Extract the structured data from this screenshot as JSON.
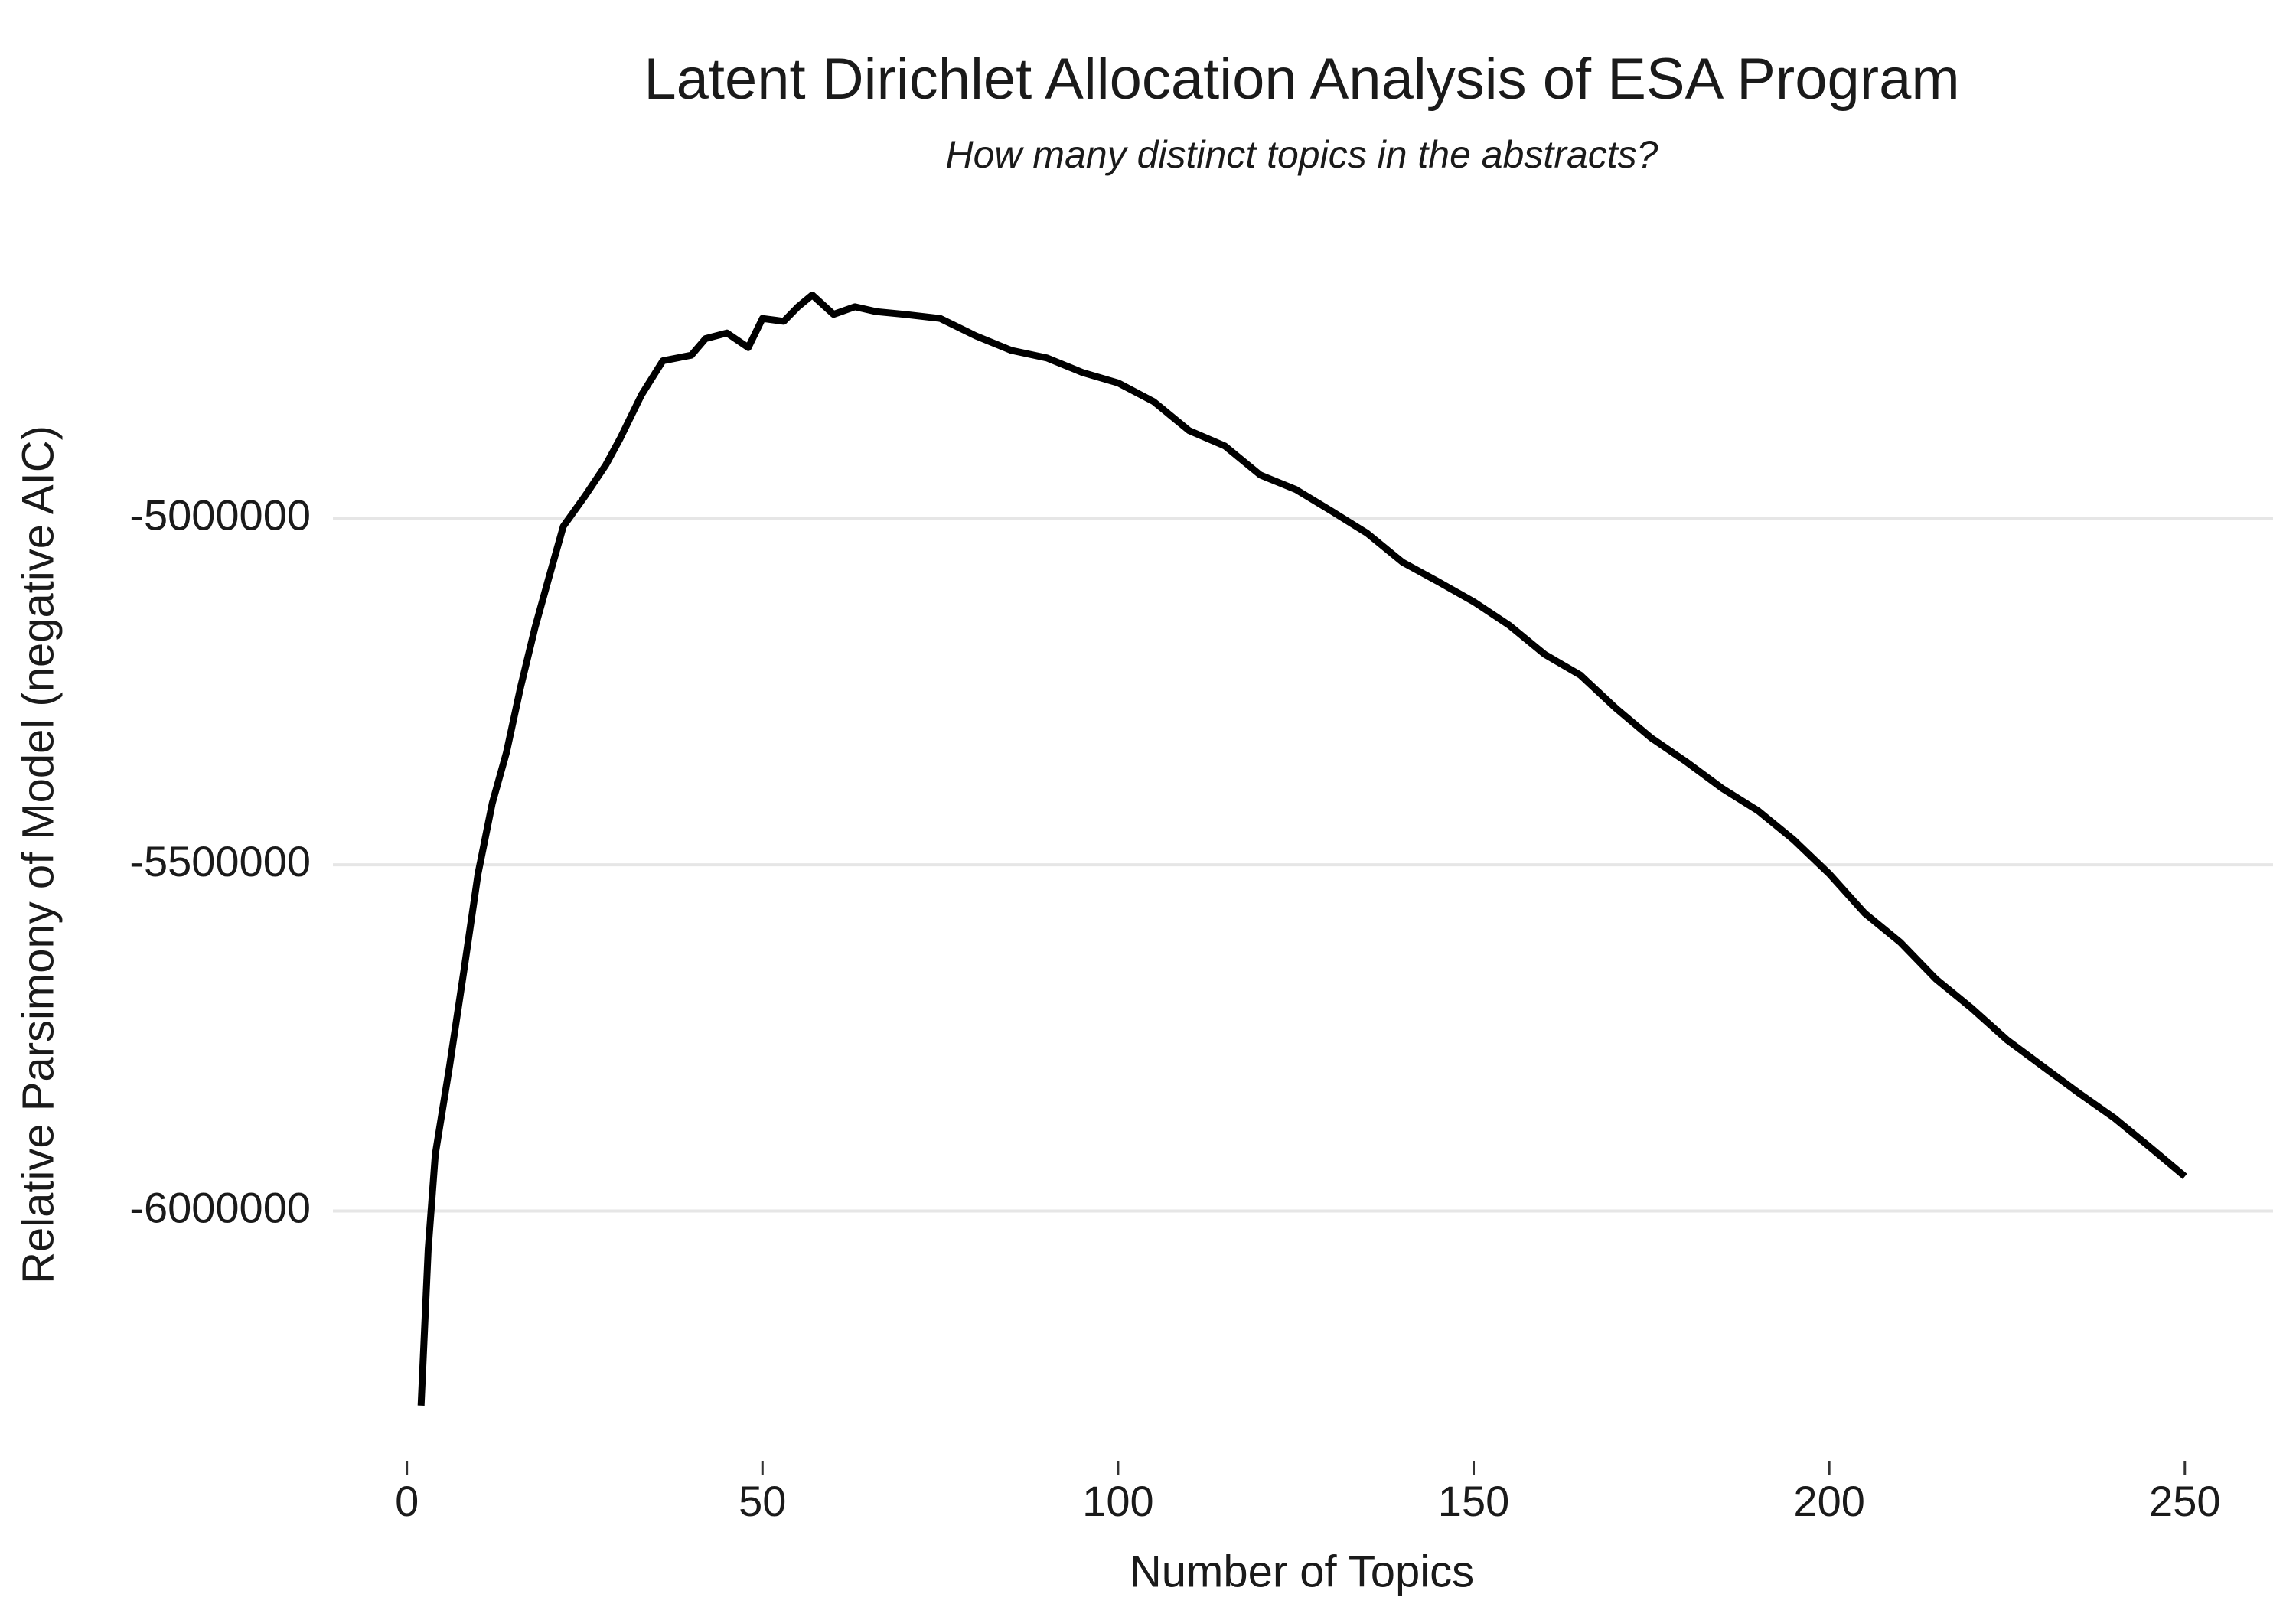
{
  "chart_data": {
    "type": "line",
    "title": "Latent Dirichlet Allocation Analysis of ESA Program",
    "subtitle": "How many distinct topics in the abstracts?",
    "x_label": "Number of Topics",
    "y_label": "Relative Parsimony of Model (negative AIC)",
    "x": [
      2,
      3,
      4,
      6,
      8,
      10,
      12,
      14,
      16,
      18,
      20,
      22,
      25,
      28,
      30,
      33,
      36,
      40,
      42,
      45,
      48,
      50,
      53,
      55,
      57,
      60,
      63,
      66,
      70,
      75,
      80,
      85,
      90,
      95,
      100,
      105,
      110,
      115,
      120,
      125,
      130,
      135,
      140,
      145,
      150,
      155,
      160,
      165,
      170,
      175,
      180,
      185,
      190,
      195,
      200,
      205,
      210,
      215,
      220,
      225,
      230,
      235,
      240,
      245,
      250
    ],
    "series": [
      {
        "name": "negative AIC",
        "color": "#000000",
        "values": [
          -6281000,
          -6055000,
          -5918000,
          -5791000,
          -5654000,
          -5513000,
          -5411000,
          -5338000,
          -5243000,
          -5158000,
          -5084000,
          -5011000,
          -4968000,
          -4922000,
          -4884000,
          -4821000,
          -4772000,
          -4764000,
          -4740000,
          -4732000,
          -4753000,
          -4711000,
          -4715000,
          -4694000,
          -4677000,
          -4705000,
          -4694000,
          -4701000,
          -4705000,
          -4711000,
          -4736000,
          -4757000,
          -4768000,
          -4789000,
          -4804000,
          -4831000,
          -4873000,
          -4895000,
          -4937000,
          -4958000,
          -4989000,
          -5021000,
          -5063000,
          -5091000,
          -5120000,
          -5154000,
          -5196000,
          -5226000,
          -5274000,
          -5317000,
          -5352000,
          -5390000,
          -5422000,
          -5464000,
          -5513000,
          -5570000,
          -5612000,
          -5665000,
          -5707000,
          -5753000,
          -5791000,
          -5829000,
          -5865000,
          -5907000,
          -5950000
        ]
      }
    ],
    "xlim": [
      -10.4,
      262.4
    ],
    "xticks": [
      0,
      50,
      100,
      150,
      200,
      250
    ],
    "ylim": [
      -6310000,
      -4640000
    ],
    "yticks": [
      -6000000,
      -5500000,
      -5000000
    ],
    "grid": true
  }
}
